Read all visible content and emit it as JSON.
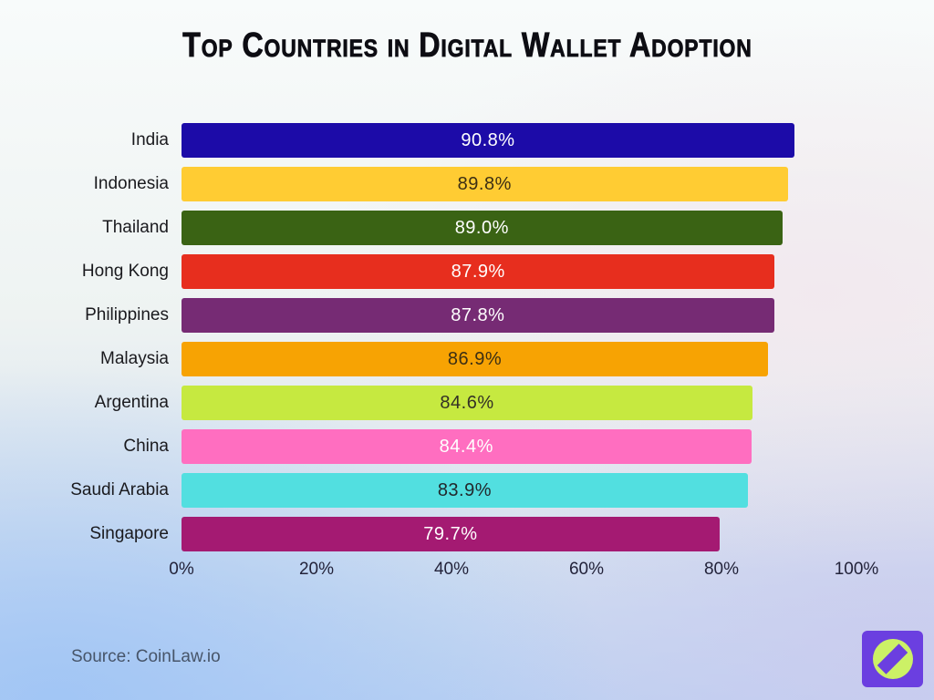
{
  "chart_data": {
    "type": "bar",
    "orientation": "horizontal",
    "title": "Top Countries in Digital Wallet Adoption",
    "categories": [
      "India",
      "Indonesia",
      "Thailand",
      "Hong Kong",
      "Philippines",
      "Malaysia",
      "Argentina",
      "China",
      "Saudi Arabia",
      "Singapore"
    ],
    "values": [
      90.8,
      89.8,
      89.0,
      87.9,
      87.8,
      86.9,
      84.6,
      84.4,
      83.9,
      79.7
    ],
    "value_labels": [
      "90.8%",
      "89.8%",
      "89.0%",
      "87.9%",
      "87.8%",
      "86.9%",
      "84.6%",
      "84.4%",
      "83.9%",
      "79.7%"
    ],
    "bar_colors": [
      "#1c0ba8",
      "#ffcc33",
      "#3a6314",
      "#e72e1e",
      "#762b74",
      "#f7a303",
      "#c6e940",
      "#ff6ec0",
      "#52dfe0",
      "#a41a72"
    ],
    "value_label_colors": [
      "#ffffff",
      "#3c2f14",
      "#ffffff",
      "#ffffff",
      "#ffffff",
      "#3c2f14",
      "#333026",
      "#ffffff",
      "#22282c",
      "#ffffff"
    ],
    "x_tick_labels": [
      "0%",
      "20%",
      "40%",
      "60%",
      "80%",
      "100%"
    ],
    "x_tick_values": [
      0,
      20,
      40,
      60,
      80,
      100
    ],
    "xlim": [
      0,
      100
    ],
    "xlabel": "",
    "ylabel": "",
    "grid": false,
    "legend": false
  },
  "footer": {
    "source": "Source: CoinLaw.io"
  },
  "logo": {
    "name": "coinlaw-compass-logo",
    "square_color": "#6b3fe0",
    "circle_color": "#ccf166",
    "needle_color": "#6b3fe0"
  }
}
